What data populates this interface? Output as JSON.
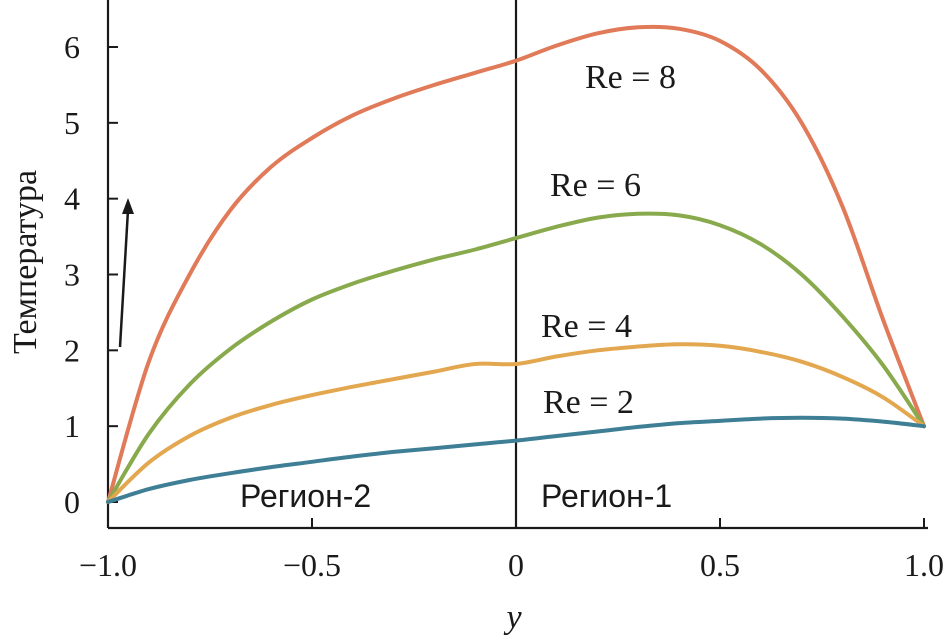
{
  "chart_data": {
    "type": "line",
    "xlabel": "y",
    "ylabel": "Температура",
    "xlim": [
      -1.0,
      1.0
    ],
    "ylim": [
      0,
      6.5
    ],
    "x_ticks": [
      -1.0,
      -0.5,
      0,
      0.5,
      1.0
    ],
    "x_tick_labels": [
      "−1.0",
      "−0.5",
      "0",
      "0.5",
      "1.0"
    ],
    "y_ticks": [
      0,
      1,
      2,
      3,
      4,
      5,
      6
    ],
    "y_tick_labels": [
      "0",
      "1",
      "2",
      "3",
      "4",
      "5",
      "6"
    ],
    "grid": false,
    "vertical_reference_line_x": 0,
    "region_labels": [
      "Регион-2",
      "Регион-1"
    ],
    "series": [
      {
        "name": "Re = 2",
        "color": "#3f7f96",
        "x": [
          -1.0,
          -0.9,
          -0.8,
          -0.7,
          -0.6,
          -0.5,
          -0.4,
          -0.3,
          -0.2,
          -0.1,
          0.0,
          0.1,
          0.2,
          0.3,
          0.4,
          0.5,
          0.6,
          0.7,
          0.8,
          0.9,
          1.0
        ],
        "y": [
          0.0,
          0.17,
          0.29,
          0.38,
          0.46,
          0.53,
          0.6,
          0.66,
          0.71,
          0.76,
          0.81,
          0.87,
          0.93,
          0.99,
          1.04,
          1.07,
          1.1,
          1.11,
          1.1,
          1.06,
          1.0
        ]
      },
      {
        "name": "Re = 4",
        "color": "#e3a74f",
        "x": [
          -1.0,
          -0.9,
          -0.8,
          -0.7,
          -0.6,
          -0.5,
          -0.4,
          -0.3,
          -0.2,
          -0.1,
          0.0,
          0.1,
          0.2,
          0.3,
          0.4,
          0.5,
          0.6,
          0.7,
          0.8,
          0.9,
          1.0
        ],
        "y": [
          0.0,
          0.52,
          0.87,
          1.11,
          1.28,
          1.41,
          1.52,
          1.62,
          1.72,
          1.82,
          1.82,
          1.92,
          2.0,
          2.05,
          2.08,
          2.06,
          1.98,
          1.85,
          1.65,
          1.38,
          1.0
        ]
      },
      {
        "name": "Re = 6",
        "color": "#88aa4d",
        "x": [
          -1.0,
          -0.9,
          -0.8,
          -0.7,
          -0.6,
          -0.5,
          -0.4,
          -0.3,
          -0.2,
          -0.1,
          0.0,
          0.1,
          0.2,
          0.3,
          0.4,
          0.5,
          0.6,
          0.7,
          0.8,
          0.9,
          1.0
        ],
        "y": [
          0.0,
          0.9,
          1.55,
          2.02,
          2.38,
          2.67,
          2.88,
          3.05,
          3.2,
          3.33,
          3.48,
          3.63,
          3.75,
          3.8,
          3.78,
          3.65,
          3.4,
          3.0,
          2.45,
          1.8,
          1.0
        ]
      },
      {
        "name": "Re = 8",
        "color": "#e07a58",
        "x": [
          -1.0,
          -0.9,
          -0.8,
          -0.7,
          -0.6,
          -0.5,
          -0.4,
          -0.3,
          -0.2,
          -0.1,
          0.0,
          0.1,
          0.2,
          0.3,
          0.4,
          0.5,
          0.6,
          0.7,
          0.8,
          0.9,
          1.0
        ],
        "y": [
          0.0,
          1.85,
          3.0,
          3.85,
          4.42,
          4.8,
          5.1,
          5.32,
          5.5,
          5.66,
          5.82,
          6.02,
          6.18,
          6.26,
          6.24,
          6.08,
          5.7,
          5.0,
          3.9,
          2.4,
          1.0
        ]
      }
    ]
  }
}
